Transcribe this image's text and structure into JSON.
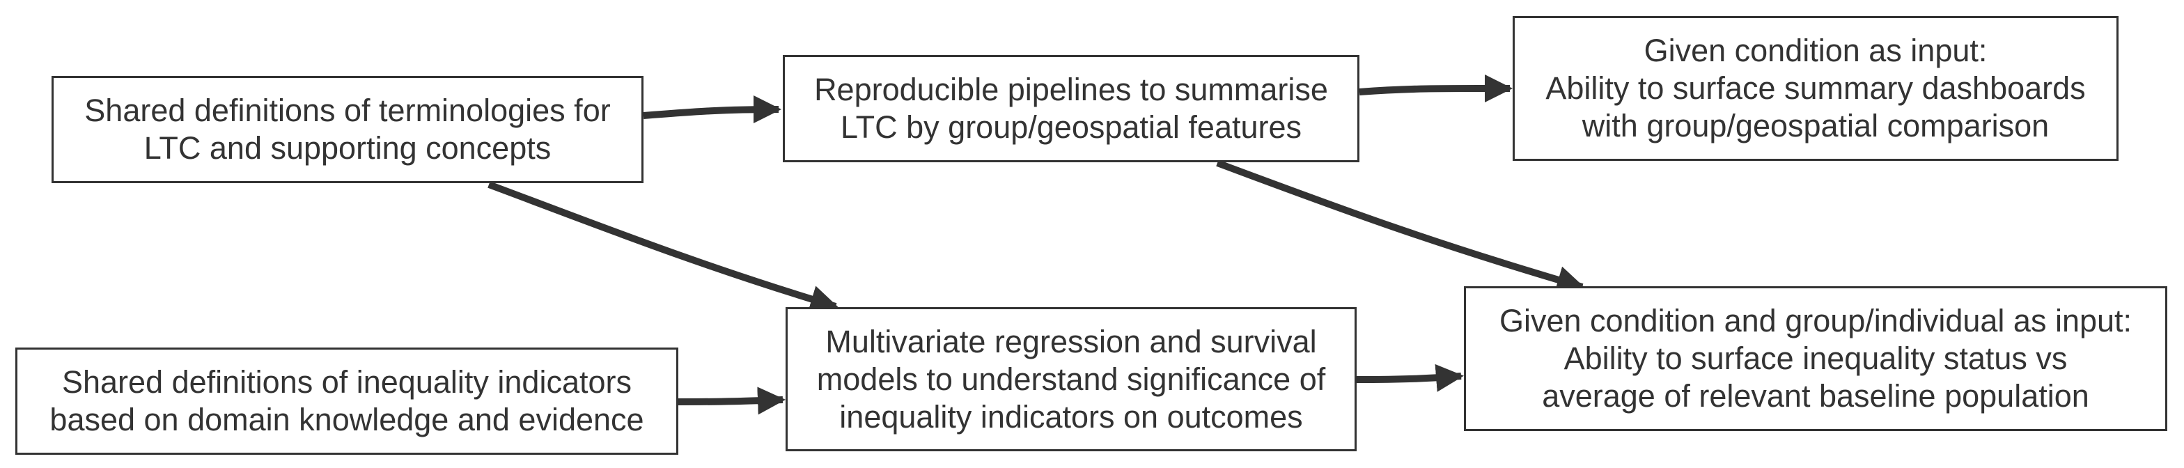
{
  "nodes": {
    "ltc_definitions": "Shared definitions of terminologies for\nLTC and supporting concepts",
    "inequality_definitions": "Shared definitions of inequality indicators\nbased on domain knowledge and evidence",
    "pipelines": "Reproducible pipelines to summarise\nLTC by group/geospatial features",
    "regression_models": "Multivariate regression and survival\nmodels to understand significance of\ninequality indicators on outcomes",
    "summary_dashboards": "Given condition as input:\nAbility to surface summary dashboards\nwith group/geospatial comparison",
    "inequality_status": "Given condition and group/individual as input:\nAbility to surface inequality status vs\naverage of relevant baseline population"
  },
  "edges": [
    {
      "from": "ltc_definitions",
      "to": "pipelines"
    },
    {
      "from": "ltc_definitions",
      "to": "regression_models"
    },
    {
      "from": "inequality_definitions",
      "to": "regression_models"
    },
    {
      "from": "pipelines",
      "to": "summary_dashboards"
    },
    {
      "from": "pipelines",
      "to": "inequality_status"
    },
    {
      "from": "regression_models",
      "to": "inequality_status"
    }
  ],
  "colors": {
    "stroke": "#333333",
    "background": "#ffffff"
  }
}
